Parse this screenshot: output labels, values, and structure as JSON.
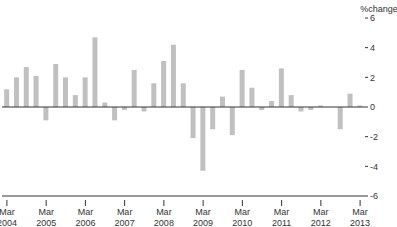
{
  "chart_data": {
    "type": "bar",
    "y_label": "%change",
    "categories": [
      "Mar 2004",
      null,
      null,
      null,
      "Mar 2005",
      null,
      null,
      null,
      "Mar 2006",
      null,
      null,
      null,
      "Mar 2007",
      null,
      null,
      null,
      "Mar 2008",
      null,
      null,
      null,
      "Mar 2009",
      null,
      null,
      null,
      "Mar 2010",
      null,
      null,
      null,
      "Mar 2011",
      null,
      null,
      null,
      "Mar 2012",
      null,
      null,
      null,
      "Mar 2013"
    ],
    "values": [
      1.2,
      2.0,
      2.7,
      2.1,
      -0.9,
      2.9,
      2.0,
      0.8,
      2.0,
      4.7,
      0.3,
      -0.9,
      -0.2,
      2.5,
      -0.3,
      1.6,
      3.1,
      4.2,
      1.6,
      -2.1,
      -4.3,
      -1.5,
      0.7,
      -1.9,
      2.5,
      1.3,
      -0.2,
      0.4,
      2.6,
      0.8,
      -0.3,
      -0.2,
      0.1,
      0.0,
      -1.5,
      0.9,
      0.1
    ],
    "color": "#c0c0c0",
    "ylim": [
      -6,
      6
    ],
    "yticks": [
      -6,
      -4,
      -2,
      0,
      2,
      4,
      6
    ],
    "grid": false
  }
}
